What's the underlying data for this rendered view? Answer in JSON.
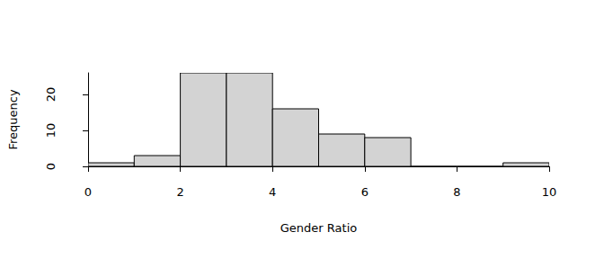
{
  "chart_data": {
    "type": "histogram",
    "x_label": "Gender Ratio",
    "y_label": "Frequency",
    "bins": [
      0,
      1,
      2,
      3,
      4,
      5,
      6,
      7,
      8,
      9,
      10
    ],
    "values": [
      1,
      3,
      26,
      26,
      16,
      9,
      8,
      0,
      0,
      1
    ],
    "color": "#d3d3d3",
    "xlim": [
      0,
      10
    ],
    "xticks": [
      0,
      2,
      4,
      6,
      8,
      10
    ],
    "ylim": [
      0,
      26
    ],
    "yticks": [
      0,
      10,
      20
    ],
    "grid": false
  }
}
